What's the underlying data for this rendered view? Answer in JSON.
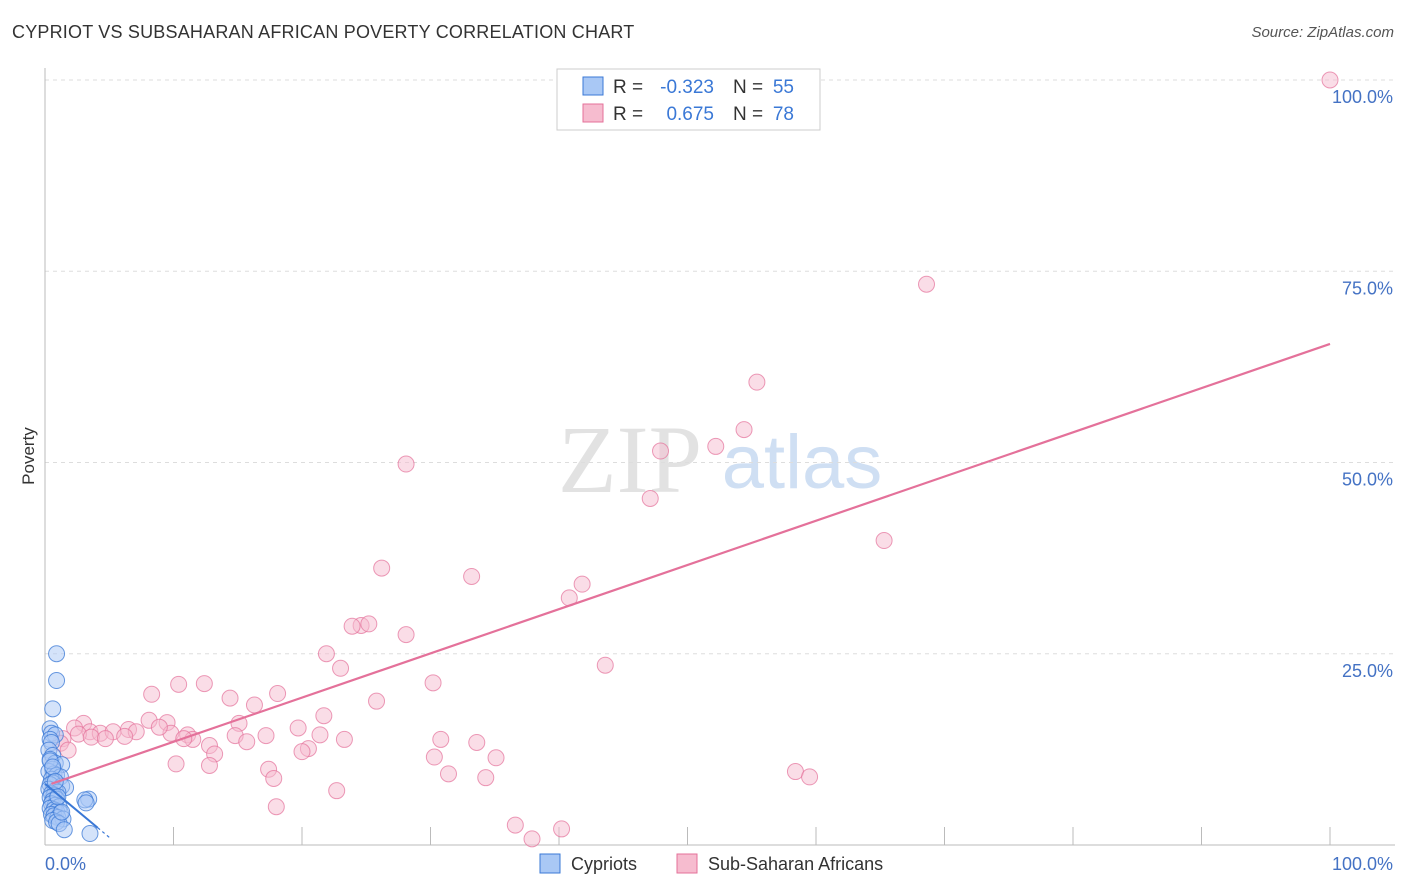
{
  "header": {
    "title": "CYPRIOT VS SUBSAHARAN AFRICAN POVERTY CORRELATION CHART",
    "source": "Source: ZipAtlas.com"
  },
  "watermark": {
    "zip": "ZIP",
    "atlas": "atlas"
  },
  "colors": {
    "blue": "#3a78d6",
    "blue_fill": "#a9c8f5",
    "pink": "#e4719a",
    "pink_fill": "#f6bccf",
    "axis_label": "#4472c4",
    "grid": "#dddddd"
  },
  "legend_top": {
    "rows": [
      {
        "r_label": "R =",
        "r_value": "-0.323",
        "n_label": "N =",
        "n_value": "55"
      },
      {
        "r_label": "R =",
        "r_value": "0.675",
        "n_label": "N =",
        "n_value": "78"
      }
    ]
  },
  "chart_data": {
    "type": "scatter",
    "title": "CYPRIOT VS SUBSAHARAN AFRICAN POVERTY CORRELATION CHART",
    "ylabel": "Poverty",
    "xlim": [
      0,
      100
    ],
    "ylim": [
      0,
      100
    ],
    "x_tick_labels": [
      "0.0%",
      "100.0%"
    ],
    "y_tick_labels": [
      "25.0%",
      "50.0%",
      "75.0%",
      "100.0%"
    ],
    "y_ticks": [
      25,
      50,
      75,
      100
    ],
    "series": [
      {
        "name": "Cypriots",
        "r": -0.323,
        "n": 55,
        "trend": {
          "x": [
            0,
            5
          ],
          "y": [
            8,
            1
          ]
        },
        "points": [
          [
            0.9,
            25
          ],
          [
            0.9,
            21.5
          ],
          [
            0.6,
            17.8
          ],
          [
            0.4,
            15.2
          ],
          [
            0.5,
            14.6
          ],
          [
            0.8,
            14.4
          ],
          [
            0.4,
            13.8
          ],
          [
            0.5,
            13.4
          ],
          [
            0.3,
            12.4
          ],
          [
            0.6,
            11.7
          ],
          [
            0.4,
            11.2
          ],
          [
            0.8,
            10.7
          ],
          [
            1.3,
            10.5
          ],
          [
            0.6,
            9.9
          ],
          [
            0.3,
            9.6
          ],
          [
            0.7,
            9.3
          ],
          [
            0.9,
            9.1
          ],
          [
            1.2,
            8.9
          ],
          [
            0.5,
            8.6
          ],
          [
            0.6,
            8.1
          ],
          [
            0.4,
            7.9
          ],
          [
            1.3,
            7.7
          ],
          [
            1.6,
            7.5
          ],
          [
            0.3,
            7.3
          ],
          [
            0.8,
            7.1
          ],
          [
            1.0,
            6.9
          ],
          [
            0.5,
            6.7
          ],
          [
            0.7,
            6.5
          ],
          [
            0.4,
            6.2
          ],
          [
            0.9,
            6.0
          ],
          [
            0.6,
            5.8
          ],
          [
            3.4,
            6.0
          ],
          [
            3.1,
            5.9
          ],
          [
            3.2,
            5.5
          ],
          [
            0.5,
            5.4
          ],
          [
            0.8,
            5.2
          ],
          [
            1.1,
            5.0
          ],
          [
            0.4,
            4.8
          ],
          [
            0.7,
            4.6
          ],
          [
            0.9,
            4.4
          ],
          [
            1.2,
            4.2
          ],
          [
            0.5,
            4.0
          ],
          [
            0.7,
            3.8
          ],
          [
            1.0,
            3.6
          ],
          [
            1.4,
            3.4
          ],
          [
            0.6,
            3.2
          ],
          [
            0.9,
            3.0
          ],
          [
            1.1,
            2.8
          ],
          [
            1.5,
            2.0
          ],
          [
            3.5,
            1.5
          ],
          [
            0.4,
            11.0
          ],
          [
            0.6,
            10.2
          ],
          [
            0.8,
            8.3
          ],
          [
            1.0,
            6.3
          ],
          [
            1.3,
            4.3
          ]
        ]
      },
      {
        "name": "Sub-Saharan Africans",
        "r": 0.675,
        "n": 78,
        "trend": {
          "x": [
            0.5,
            100
          ],
          "y": [
            8,
            65.5
          ]
        },
        "points": [
          [
            100,
            100
          ],
          [
            68.6,
            73.3
          ],
          [
            55.4,
            60.5
          ],
          [
            54.4,
            54.3
          ],
          [
            52.2,
            52.1
          ],
          [
            47.9,
            51.5
          ],
          [
            28.1,
            49.8
          ],
          [
            47.1,
            45.3
          ],
          [
            65.3,
            39.8
          ],
          [
            26.2,
            36.2
          ],
          [
            33.2,
            35.1
          ],
          [
            41.8,
            34.1
          ],
          [
            40.8,
            32.3
          ],
          [
            24.6,
            28.7
          ],
          [
            23.9,
            28.6
          ],
          [
            25.2,
            28.9
          ],
          [
            28.1,
            27.5
          ],
          [
            21.9,
            25.0
          ],
          [
            43.6,
            23.5
          ],
          [
            23.0,
            23.1
          ],
          [
            30.2,
            21.2
          ],
          [
            10.4,
            21.0
          ],
          [
            12.4,
            21.1
          ],
          [
            8.3,
            19.7
          ],
          [
            18.1,
            19.8
          ],
          [
            14.4,
            19.2
          ],
          [
            25.8,
            18.8
          ],
          [
            16.3,
            18.3
          ],
          [
            21.7,
            16.9
          ],
          [
            3.0,
            15.9
          ],
          [
            8.1,
            16.3
          ],
          [
            9.5,
            16.0
          ],
          [
            15.1,
            15.9
          ],
          [
            2.3,
            15.3
          ],
          [
            3.5,
            14.8
          ],
          [
            4.3,
            14.6
          ],
          [
            5.3,
            14.8
          ],
          [
            6.5,
            15.1
          ],
          [
            7.1,
            14.8
          ],
          [
            9.8,
            14.6
          ],
          [
            11.1,
            14.4
          ],
          [
            14.8,
            14.3
          ],
          [
            17.2,
            14.3
          ],
          [
            19.7,
            15.3
          ],
          [
            21.4,
            14.4
          ],
          [
            23.3,
            13.8
          ],
          [
            1.4,
            13.9
          ],
          [
            2.6,
            14.5
          ],
          [
            3.6,
            14.1
          ],
          [
            4.7,
            13.9
          ],
          [
            11.5,
            13.8
          ],
          [
            12.8,
            13.0
          ],
          [
            15.7,
            13.5
          ],
          [
            20.5,
            12.6
          ],
          [
            30.8,
            13.8
          ],
          [
            33.6,
            13.4
          ],
          [
            35.1,
            11.4
          ],
          [
            1.2,
            13.3
          ],
          [
            1.8,
            12.4
          ],
          [
            20.0,
            12.2
          ],
          [
            13.2,
            11.9
          ],
          [
            10.2,
            10.6
          ],
          [
            12.8,
            10.4
          ],
          [
            17.4,
            9.9
          ],
          [
            30.3,
            11.5
          ],
          [
            31.4,
            9.3
          ],
          [
            34.3,
            8.8
          ],
          [
            58.4,
            9.6
          ],
          [
            59.5,
            8.9
          ],
          [
            17.8,
            8.7
          ],
          [
            22.7,
            7.1
          ],
          [
            40.2,
            2.1
          ],
          [
            37.9,
            0.8
          ],
          [
            18.0,
            5.0
          ],
          [
            36.6,
            2.6
          ],
          [
            6.2,
            14.2
          ],
          [
            8.9,
            15.4
          ],
          [
            10.8,
            13.9
          ]
        ]
      }
    ]
  },
  "legend_bottom": {
    "items": [
      "Cypriots",
      "Sub-Saharan Africans"
    ]
  }
}
